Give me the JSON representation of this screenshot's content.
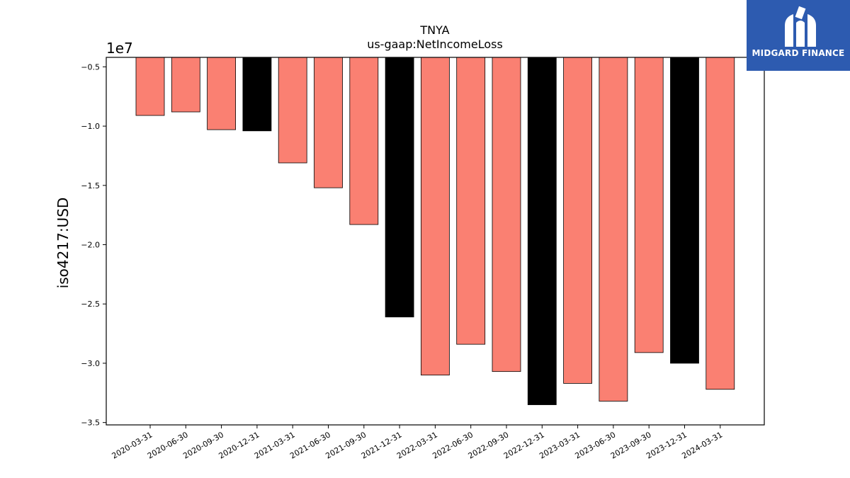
{
  "chart_data": {
    "type": "bar",
    "title": "TNYA",
    "subtitle": "us-gaap:NetIncomeLoss",
    "ylabel": "iso4217:USD",
    "xlabel": "",
    "offset_label": "1e7",
    "categories": [
      "2020-03-31",
      "2020-06-30",
      "2020-09-30",
      "2020-12-31",
      "2021-03-31",
      "2021-06-30",
      "2021-09-30",
      "2021-12-31",
      "2022-03-31",
      "2022-06-30",
      "2022-09-30",
      "2022-12-31",
      "2023-03-31",
      "2023-06-30",
      "2023-09-30",
      "2023-12-31",
      "2024-03-31"
    ],
    "values": [
      -9100000,
      -8800000,
      -10300000,
      -10400000,
      -13100000,
      -15200000,
      -18300000,
      -26100000,
      -31000000,
      -28400000,
      -30700000,
      -33500000,
      -31700000,
      -33200000,
      -29100000,
      -30000000,
      -32200000
    ],
    "bar_colors": [
      "#fa8072",
      "#fa8072",
      "#fa8072",
      "#000000",
      "#fa8072",
      "#fa8072",
      "#fa8072",
      "#000000",
      "#fa8072",
      "#fa8072",
      "#fa8072",
      "#000000",
      "#fa8072",
      "#fa8072",
      "#fa8072",
      "#000000",
      "#fa8072"
    ],
    "yticks": [
      -0.5,
      -1.0,
      -1.5,
      -2.0,
      -2.5,
      -3.0,
      -3.5
    ],
    "ytick_labels": [
      "−0.5",
      "−1.0",
      "−1.5",
      "−2.0",
      "−2.5",
      "−3.0",
      "−3.5"
    ],
    "ylim": [
      -35200000,
      -4200000
    ],
    "grid": false
  },
  "logo": {
    "text": "MIDGARD FINANCE",
    "color": "#2d5bb0"
  }
}
